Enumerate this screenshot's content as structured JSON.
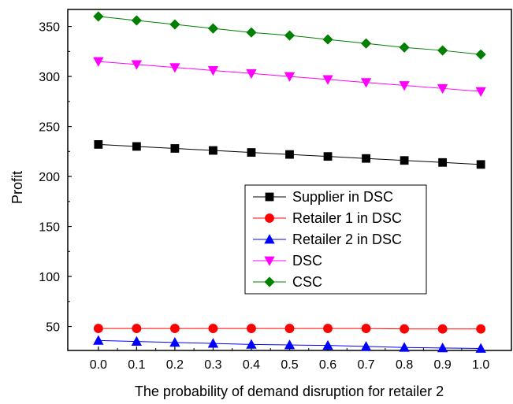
{
  "chart_data": {
    "type": "line",
    "title": "",
    "xlabel": "The probability of demand disruption for retailer 2",
    "ylabel": "Profit",
    "x": [
      0.0,
      0.1,
      0.2,
      0.3,
      0.4,
      0.5,
      0.6,
      0.7,
      0.8,
      0.9,
      1.0
    ],
    "x_tick_labels": [
      "0.0",
      "0.1",
      "0.2",
      "0.3",
      "0.4",
      "0.5",
      "0.6",
      "0.7",
      "0.8",
      "0.9",
      "1.0"
    ],
    "xlim": [
      -0.08,
      1.08
    ],
    "y_ticks": [
      50,
      100,
      150,
      200,
      250,
      300,
      350
    ],
    "y_tick_labels": [
      "50",
      "100",
      "150",
      "200",
      "250",
      "300",
      "350"
    ],
    "ylim": [
      26,
      367
    ],
    "grid": false,
    "legend_position": "center-right",
    "series": [
      {
        "name": "Supplier in DSC",
        "color": "#000000",
        "marker": "square",
        "values": [
          232,
          230,
          228,
          226,
          224,
          222,
          220,
          218,
          216,
          214,
          212
        ]
      },
      {
        "name": "Retailer 1 in DSC",
        "color": "#ff0000",
        "marker": "circle",
        "values": [
          48,
          48,
          48,
          48,
          48,
          48,
          48,
          48,
          47.5,
          47.5,
          47.5
        ]
      },
      {
        "name": "Retailer 2 in DSC",
        "color": "#0000ff",
        "marker": "triangle-up",
        "values": [
          36,
          35,
          34,
          33,
          32,
          31.5,
          31,
          30,
          29,
          28.5,
          28
        ]
      },
      {
        "name": "DSC",
        "color": "#ff00ff",
        "marker": "triangle-down",
        "values": [
          315,
          312,
          309,
          306,
          303,
          300,
          297,
          294,
          291,
          288,
          285
        ]
      },
      {
        "name": "CSC",
        "color": "#008000",
        "marker": "diamond",
        "values": [
          360,
          356,
          352,
          348,
          344,
          341,
          337,
          333,
          329,
          326,
          322
        ]
      }
    ]
  }
}
